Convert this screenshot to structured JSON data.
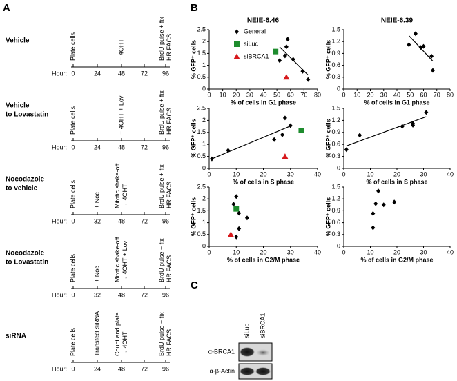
{
  "panel_a": {
    "label": "A",
    "axis_label": "Hour:",
    "timelines": [
      {
        "title": [
          "Vehicle"
        ],
        "hours": [
          0,
          24,
          48,
          72,
          96
        ],
        "events": [
          [
            "Plate cells"
          ],
          null,
          [
            "+ 4OHT"
          ],
          null,
          [
            "BrdU pulse + fix",
            "HR FACS"
          ]
        ]
      },
      {
        "title": [
          "Vehicle",
          "to Lovastatin"
        ],
        "hours": [
          0,
          24,
          48,
          72,
          96
        ],
        "events": [
          [
            "Plate cells"
          ],
          null,
          [
            "+ 4OHT + Lov"
          ],
          null,
          [
            "BrdU pulse + fix",
            "HR FACS"
          ]
        ]
      },
      {
        "title": [
          "Nocodazole",
          "to vehicle"
        ],
        "hours": [
          0,
          32,
          48,
          72,
          96
        ],
        "events": [
          [
            "Plate cells"
          ],
          [
            "+ Noc"
          ],
          [
            "Mitotic shake-off",
            "→ 4OHT"
          ],
          null,
          [
            "BrdU pulse + fix",
            "HR FACS"
          ]
        ]
      },
      {
        "title": [
          "Nocodazole",
          "to Lovastatin"
        ],
        "hours": [
          0,
          32,
          48,
          72,
          96
        ],
        "events": [
          [
            "Plate cells"
          ],
          [
            "+ Noc"
          ],
          [
            "Mitotic shake-off",
            "→ 4OHT + Lov"
          ],
          null,
          [
            "BrdU pulse + fix",
            "HR FACS"
          ]
        ]
      },
      {
        "title": [
          "siRNA"
        ],
        "hours": [
          0,
          24,
          48,
          72,
          96
        ],
        "events": [
          [
            "Plate cells"
          ],
          [
            "Transfect siRNA"
          ],
          [
            "Count and plate",
            "→ 4OHT"
          ],
          null,
          [
            "BrdU pulse + fix",
            "HR FACS"
          ]
        ]
      }
    ]
  },
  "panel_b": {
    "label": "B",
    "column_titles": [
      "NEIE-6.46",
      "NEIE-6.39"
    ]
  },
  "chart_data": [
    {
      "type": "scatter",
      "x_label": "% of cells in G1 phase",
      "y_label": "% GFP⁺ cells",
      "xlim": [
        0,
        80
      ],
      "xticks": [
        0,
        10,
        20,
        30,
        40,
        50,
        60,
        70,
        80
      ],
      "ylim": [
        0,
        2.5
      ],
      "yticks": [
        0,
        0.5,
        1,
        1.5,
        2,
        2.5
      ],
      "trendline": true,
      "legend": "top-left",
      "series": [
        {
          "name": "General",
          "color": "#000000",
          "marker": "diamond",
          "x": [
            52,
            56,
            57,
            58,
            62,
            69,
            73
          ],
          "values": [
            1.2,
            1.4,
            1.78,
            2.1,
            1.25,
            0.75,
            0.4
          ]
        },
        {
          "name": "siLuc",
          "color": "#1e8c2e",
          "marker": "square",
          "x": [
            49
          ],
          "values": [
            1.58
          ]
        },
        {
          "name": "siBRCA1",
          "color": "#d7191c",
          "marker": "triangle",
          "x": [
            57
          ],
          "values": [
            0.5
          ]
        }
      ]
    },
    {
      "type": "scatter",
      "x_label": "% of cells in G1 phase",
      "y_label": "% GFP⁺ cells",
      "xlim": [
        0,
        80
      ],
      "xticks": [
        0,
        10,
        20,
        30,
        40,
        50,
        60,
        70,
        80
      ],
      "ylim": [
        0,
        1.5
      ],
      "yticks": [
        0,
        0.3,
        0.6,
        0.9,
        1.2,
        1.5
      ],
      "trendline": true,
      "series": [
        {
          "color": "#000000",
          "marker": "diamond",
          "x": [
            49,
            54,
            58,
            60,
            66,
            67
          ],
          "values": [
            1.12,
            1.4,
            1.05,
            1.08,
            0.83,
            0.47
          ]
        }
      ]
    },
    {
      "type": "scatter",
      "x_label": "% of cells in S phase",
      "y_label": "% GFP⁺ cells",
      "xlim": [
        0,
        40
      ],
      "xticks": [
        0,
        10,
        20,
        30,
        40
      ],
      "ylim": [
        0,
        2.5
      ],
      "yticks": [
        0,
        0.5,
        1,
        1.5,
        2,
        2.5
      ],
      "trendline": true,
      "series": [
        {
          "color": "#000000",
          "marker": "diamond",
          "x": [
            1,
            7,
            24,
            27,
            28,
            30
          ],
          "values": [
            0.4,
            0.75,
            1.2,
            1.4,
            2.1,
            1.78
          ]
        },
        {
          "color": "#1e8c2e",
          "marker": "square",
          "x": [
            34
          ],
          "values": [
            1.58
          ]
        },
        {
          "color": "#d7191c",
          "marker": "triangle",
          "x": [
            28
          ],
          "values": [
            0.5
          ]
        }
      ]
    },
    {
      "type": "scatter",
      "x_label": "% of cells in S phase",
      "y_label": "% GFP⁺ cells",
      "xlim": [
        0,
        40
      ],
      "xticks": [
        0,
        10,
        20,
        30,
        40
      ],
      "ylim": [
        0,
        1.5
      ],
      "yticks": [
        0,
        0.3,
        0.6,
        0.9,
        1.2,
        1.5
      ],
      "trendline": true,
      "series": [
        {
          "color": "#000000",
          "marker": "diamond",
          "x": [
            1,
            6,
            22,
            26,
            26,
            31
          ],
          "values": [
            0.47,
            0.83,
            1.05,
            1.08,
            1.12,
            1.4
          ]
        }
      ]
    },
    {
      "type": "scatter",
      "x_label": "% of cells in G2/M phase",
      "y_label": "% GFP⁺ cells",
      "xlim": [
        0,
        40
      ],
      "xticks": [
        0,
        10,
        20,
        30,
        40
      ],
      "ylim": [
        0,
        2.5
      ],
      "yticks": [
        0,
        0.5,
        1,
        1.5,
        2,
        2.5
      ],
      "trendline": false,
      "series": [
        {
          "color": "#000000",
          "marker": "diamond",
          "x": [
            9,
            10,
            11,
            14,
            11,
            10
          ],
          "values": [
            1.78,
            2.1,
            1.4,
            1.2,
            0.75,
            0.4
          ]
        },
        {
          "color": "#1e8c2e",
          "marker": "square",
          "x": [
            10
          ],
          "values": [
            1.58
          ]
        },
        {
          "color": "#d7191c",
          "marker": "triangle",
          "x": [
            8
          ],
          "values": [
            0.5
          ]
        }
      ]
    },
    {
      "type": "scatter",
      "x_label": "% of cells in G2/M phase",
      "y_label": "% GFP⁺ cells",
      "xlim": [
        0,
        40
      ],
      "xticks": [
        0,
        10,
        20,
        30,
        40
      ],
      "ylim": [
        0,
        1.5
      ],
      "yticks": [
        0,
        0.3,
        0.6,
        0.9,
        1.2,
        1.5
      ],
      "trendline": false,
      "series": [
        {
          "color": "#000000",
          "marker": "diamond",
          "x": [
            11,
            11,
            12,
            13,
            15,
            19
          ],
          "values": [
            0.47,
            0.83,
            1.08,
            1.4,
            1.05,
            1.12
          ]
        }
      ]
    }
  ],
  "panel_c": {
    "label": "C",
    "lanes": [
      "siLuc",
      "siBRCA1"
    ],
    "rows": [
      "α-BRCA1",
      "α-β-Actin"
    ]
  }
}
